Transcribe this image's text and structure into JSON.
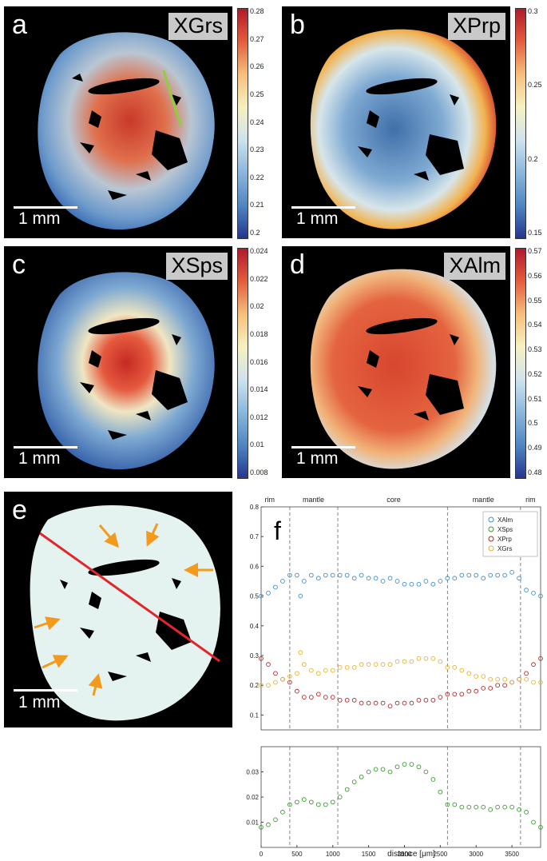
{
  "figure": {
    "panels": [
      {
        "letter": "a",
        "label": "XGrs",
        "scale_bar": "1 mm",
        "cmap_reversed": false,
        "colorbar_ticks": [
          "0.28",
          "0.27",
          "0.26",
          "0.25",
          "0.24",
          "0.23",
          "0.22",
          "0.21",
          "0.2"
        ]
      },
      {
        "letter": "b",
        "label": "XPrp",
        "scale_bar": "1 mm",
        "cmap_reversed": true,
        "colorbar_ticks": [
          "0.3",
          "0.25",
          "0.2",
          "0.15"
        ]
      },
      {
        "letter": "c",
        "label": "XSps",
        "scale_bar": "1 mm",
        "cmap_reversed": false,
        "colorbar_ticks": [
          "0.024",
          "0.022",
          "0.02",
          "0.018",
          "0.016",
          "0.014",
          "0.012",
          "0.01",
          "0.008"
        ]
      },
      {
        "letter": "d",
        "label": "XAlm",
        "scale_bar": "1 mm",
        "cmap_reversed": false,
        "colorbar_ticks": [
          "0.57",
          "0.56",
          "0.55",
          "0.54",
          "0.53",
          "0.52",
          "0.51",
          "0.5",
          "0.49",
          "0.48"
        ]
      },
      {
        "letter": "e",
        "scale_bar": "1 mm"
      }
    ],
    "colors": {
      "profile_line": "#e3262b",
      "arrows": "#f39a1e",
      "mineral_mask": "#e4f3ef",
      "alm": "#3a8fd1",
      "sps": "#3a9a2f",
      "prp": "#b0282c",
      "grs": "#e8b32a"
    }
  },
  "chart_data": {
    "type": "scatter",
    "panel_letter": "f",
    "xlabel": "distance [μm]",
    "xlim": [
      0,
      3900
    ],
    "x_ticks": [
      "0",
      "500",
      "1000",
      "1500",
      "2000",
      "2500",
      "3000",
      "3500"
    ],
    "upper_ylim": [
      0.05,
      0.8
    ],
    "upper_y_ticks": [
      "0.1",
      "0.2",
      "0.3",
      "0.4",
      "0.5",
      "0.6",
      "0.7",
      "0.8"
    ],
    "lower_ylim": [
      0.0,
      0.04
    ],
    "lower_y_ticks": [
      "0.01",
      "0.02",
      "0.03"
    ],
    "zones": [
      {
        "label": "rim",
        "x": 120
      },
      {
        "label": "mantle",
        "x": 730
      },
      {
        "label": "core",
        "x": 1850
      },
      {
        "label": "mantle",
        "x": 3100
      },
      {
        "label": "rim",
        "x": 3760
      }
    ],
    "zone_boundaries": [
      400,
      1070,
      2600,
      3620
    ],
    "legend": [
      "XAlm",
      "XSps",
      "XPrp",
      "XGrs"
    ],
    "series": [
      {
        "name": "XAlm",
        "axis": "upper",
        "x": [
          0,
          100,
          200,
          300,
          400,
          500,
          550,
          600,
          700,
          800,
          900,
          1000,
          1100,
          1200,
          1300,
          1400,
          1500,
          1600,
          1700,
          1800,
          1900,
          2000,
          2100,
          2200,
          2300,
          2400,
          2500,
          2600,
          2700,
          2800,
          2900,
          3000,
          3100,
          3200,
          3300,
          3400,
          3500,
          3600,
          3700,
          3800,
          3900
        ],
        "y": [
          0.5,
          0.51,
          0.53,
          0.55,
          0.57,
          0.57,
          0.5,
          0.55,
          0.57,
          0.56,
          0.57,
          0.57,
          0.57,
          0.57,
          0.56,
          0.57,
          0.56,
          0.56,
          0.55,
          0.56,
          0.55,
          0.54,
          0.54,
          0.54,
          0.55,
          0.54,
          0.55,
          0.56,
          0.56,
          0.57,
          0.57,
          0.57,
          0.56,
          0.57,
          0.57,
          0.57,
          0.58,
          0.56,
          0.52,
          0.51,
          0.5
        ]
      },
      {
        "name": "XPrp",
        "axis": "upper",
        "x": [
          0,
          100,
          200,
          300,
          400,
          500,
          600,
          700,
          800,
          900,
          1000,
          1100,
          1200,
          1300,
          1400,
          1500,
          1600,
          1700,
          1800,
          1900,
          2000,
          2100,
          2200,
          2300,
          2400,
          2500,
          2600,
          2700,
          2800,
          2900,
          3000,
          3100,
          3200,
          3300,
          3400,
          3500,
          3600,
          3700,
          3800,
          3900
        ],
        "y": [
          0.29,
          0.27,
          0.24,
          0.22,
          0.21,
          0.18,
          0.16,
          0.16,
          0.17,
          0.16,
          0.16,
          0.15,
          0.15,
          0.15,
          0.14,
          0.14,
          0.14,
          0.14,
          0.13,
          0.14,
          0.14,
          0.14,
          0.15,
          0.15,
          0.15,
          0.16,
          0.17,
          0.17,
          0.17,
          0.18,
          0.18,
          0.19,
          0.19,
          0.2,
          0.2,
          0.21,
          0.22,
          0.24,
          0.27,
          0.29
        ]
      },
      {
        "name": "XGrs",
        "axis": "upper",
        "x": [
          0,
          100,
          200,
          300,
          400,
          500,
          550,
          600,
          700,
          800,
          900,
          1000,
          1100,
          1200,
          1300,
          1400,
          1500,
          1600,
          1700,
          1800,
          1900,
          2000,
          2100,
          2200,
          2300,
          2400,
          2500,
          2600,
          2700,
          2800,
          2900,
          3000,
          3100,
          3200,
          3300,
          3400,
          3500,
          3600,
          3700,
          3800,
          3900
        ],
        "y": [
          0.2,
          0.2,
          0.21,
          0.22,
          0.23,
          0.24,
          0.31,
          0.27,
          0.25,
          0.24,
          0.25,
          0.25,
          0.26,
          0.26,
          0.26,
          0.27,
          0.27,
          0.27,
          0.27,
          0.27,
          0.28,
          0.28,
          0.28,
          0.29,
          0.29,
          0.29,
          0.28,
          0.26,
          0.26,
          0.25,
          0.24,
          0.23,
          0.23,
          0.22,
          0.22,
          0.22,
          0.21,
          0.22,
          0.22,
          0.21,
          0.21
        ]
      },
      {
        "name": "XSps",
        "axis": "lower",
        "x": [
          0,
          100,
          200,
          300,
          400,
          500,
          600,
          700,
          800,
          900,
          1000,
          1100,
          1200,
          1300,
          1400,
          1500,
          1600,
          1700,
          1800,
          1900,
          2000,
          2100,
          2200,
          2300,
          2400,
          2500,
          2600,
          2700,
          2800,
          2900,
          3000,
          3100,
          3200,
          3300,
          3400,
          3500,
          3600,
          3700,
          3800,
          3900
        ],
        "y": [
          0.008,
          0.009,
          0.011,
          0.014,
          0.017,
          0.018,
          0.019,
          0.018,
          0.017,
          0.017,
          0.018,
          0.02,
          0.023,
          0.026,
          0.028,
          0.03,
          0.031,
          0.031,
          0.03,
          0.032,
          0.033,
          0.033,
          0.032,
          0.03,
          0.027,
          0.022,
          0.017,
          0.017,
          0.016,
          0.016,
          0.016,
          0.016,
          0.015,
          0.016,
          0.016,
          0.016,
          0.015,
          0.014,
          0.01,
          0.008
        ]
      }
    ]
  }
}
